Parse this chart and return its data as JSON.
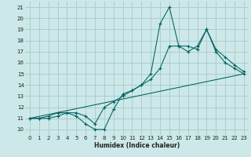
{
  "xlabel": "Humidex (Indice chaleur)",
  "bg_color": "#cce8e8",
  "grid_color": "#aac8c8",
  "line_color": "#006060",
  "xlim": [
    -0.5,
    23.5
  ],
  "ylim": [
    9.5,
    21.5
  ],
  "xticks": [
    0,
    1,
    2,
    3,
    4,
    5,
    6,
    7,
    8,
    9,
    10,
    11,
    12,
    13,
    14,
    15,
    16,
    17,
    18,
    19,
    20,
    21,
    22,
    23
  ],
  "yticks": [
    10,
    11,
    12,
    13,
    14,
    15,
    16,
    17,
    18,
    19,
    20,
    21
  ],
  "series1_x": [
    0,
    1,
    2,
    3,
    4,
    5,
    6,
    7,
    8,
    9,
    10,
    11,
    12,
    13,
    14,
    15,
    16,
    17,
    18,
    19,
    20,
    21,
    22,
    23
  ],
  "series1_y": [
    11,
    11,
    11.2,
    11.5,
    11.5,
    11.2,
    10.5,
    10,
    10,
    11.8,
    13.2,
    13.5,
    14.0,
    15.0,
    19.5,
    21,
    17.5,
    17.5,
    17.2,
    19,
    17,
    16,
    15.5,
    15
  ],
  "series2_x": [
    0,
    1,
    2,
    3,
    4,
    5,
    6,
    7,
    8,
    9,
    10,
    11,
    12,
    13,
    14,
    15,
    16,
    17,
    18,
    19,
    20,
    21,
    22,
    23
  ],
  "series2_y": [
    11,
    11,
    11,
    11.2,
    11.5,
    11.5,
    11.2,
    10.5,
    12,
    12.5,
    13,
    13.5,
    14,
    14.5,
    15.5,
    17.5,
    17.5,
    17,
    17.5,
    19,
    17.2,
    16.5,
    15.8,
    15.2
  ],
  "series3_x": [
    0,
    23
  ],
  "series3_y": [
    11,
    15
  ]
}
